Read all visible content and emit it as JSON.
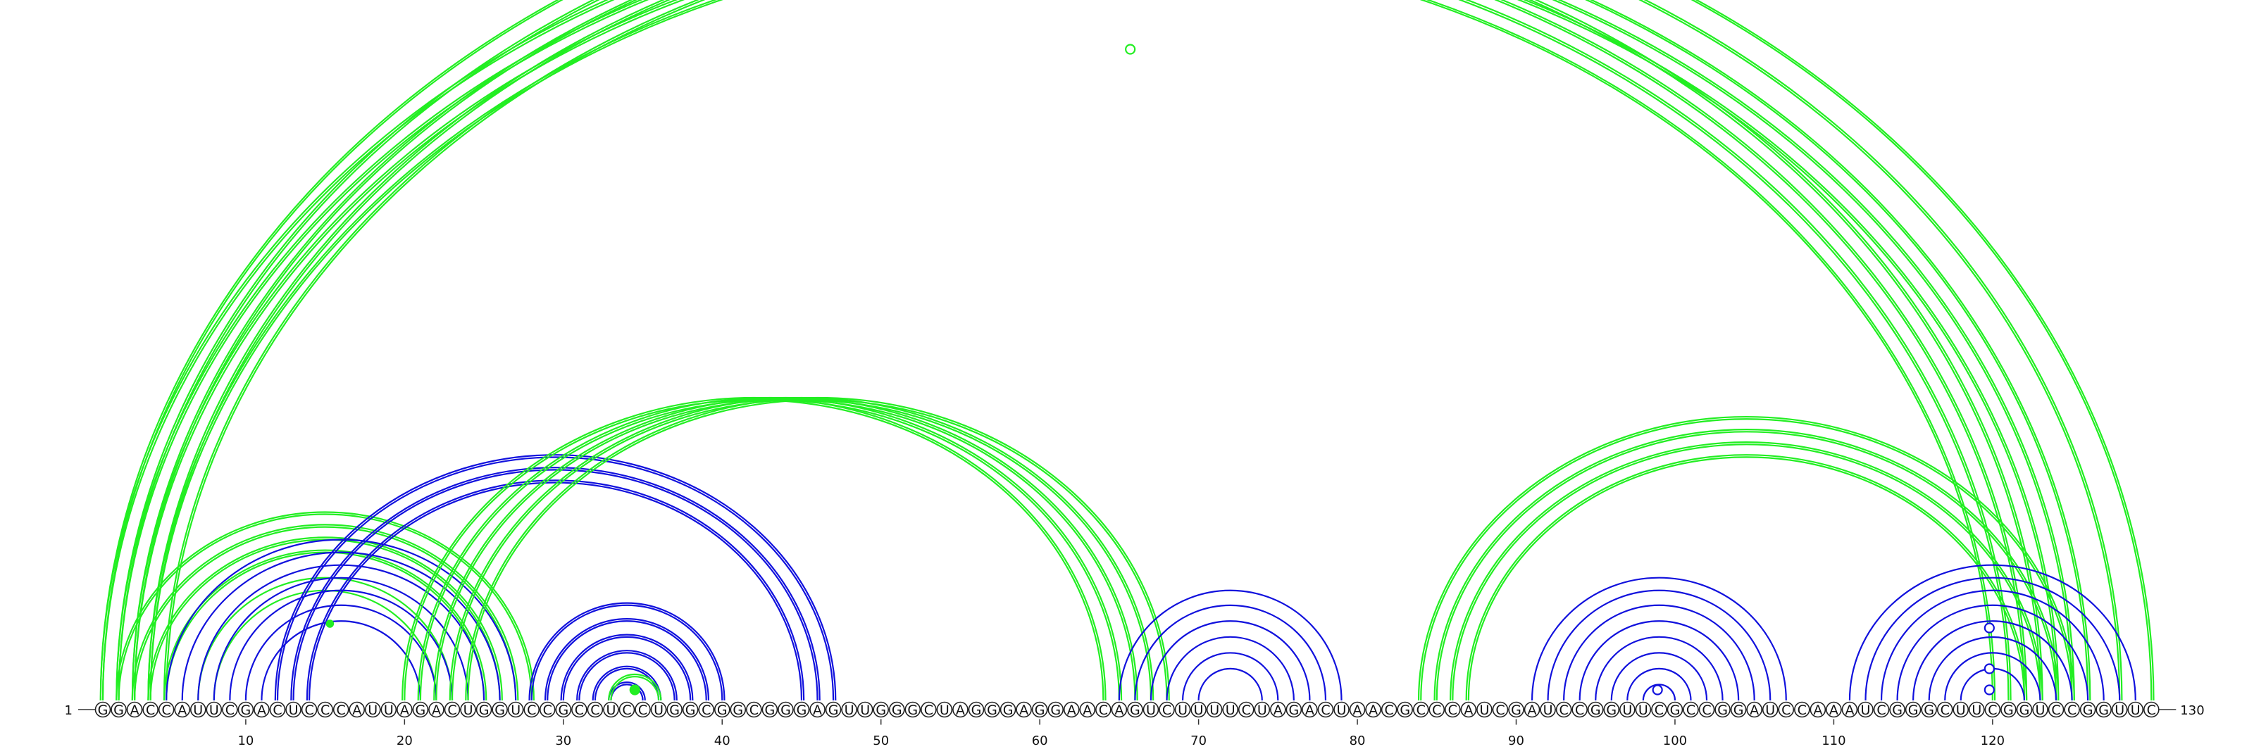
{
  "sequence": "GGACCAUUCGACUCCCAUUAGACUGGUCCGCCUCCUGGCGGCGGGAGUUGGGCUAGGGAGGAACAGUCUUUUCUAGACUAACGCCCAUCGAUCCGGUUCGCCGGAUCCAAAUCGGGCUUCGGUCCGGUUC",
  "start_label": "1",
  "end_label": "130",
  "ticks": [
    "10",
    "20",
    "30",
    "40",
    "50",
    "60",
    "70",
    "80",
    "90",
    "100",
    "110",
    "120"
  ],
  "tick_positions": [
    10,
    20,
    30,
    40,
    50,
    60,
    70,
    80,
    90,
    100,
    110,
    120
  ],
  "colors": {
    "green": "#22ee22",
    "blue": "#1111dd"
  },
  "arc_groups": [
    {
      "color": "green",
      "pairs": [
        [
          1,
          130
        ],
        [
          2,
          128
        ],
        [
          3,
          126
        ],
        [
          4,
          125
        ],
        [
          5,
          124
        ]
      ],
      "strands": 2
    },
    {
      "color": "green",
      "pairs": [
        [
          1,
          123
        ],
        [
          2,
          122
        ],
        [
          3,
          121
        ],
        [
          4,
          120
        ]
      ],
      "strands": 2
    },
    {
      "color": "green",
      "pairs": [
        [
          2,
          28
        ],
        [
          3,
          27
        ],
        [
          4,
          26
        ],
        [
          5,
          25
        ]
      ],
      "strands": 2
    },
    {
      "color": "green",
      "pairs": [
        [
          7,
          23
        ],
        [
          8,
          22
        ]
      ],
      "strands": 1
    },
    {
      "color": "blue",
      "pairs": [
        [
          5,
          27
        ],
        [
          6,
          26
        ],
        [
          7,
          25
        ],
        [
          8,
          24
        ],
        [
          9,
          23
        ],
        [
          10,
          22
        ],
        [
          11,
          21
        ]
      ],
      "strands": 1
    },
    {
      "color": "blue",
      "pairs": [
        [
          12,
          47
        ],
        [
          13,
          46
        ],
        [
          14,
          45
        ]
      ],
      "strands": 2
    },
    {
      "color": "green",
      "pairs": [
        [
          20,
          64
        ],
        [
          21,
          65
        ],
        [
          22,
          66
        ],
        [
          23,
          67
        ],
        [
          24,
          68
        ]
      ],
      "strands": 2
    },
    {
      "color": "blue",
      "pairs": [
        [
          28,
          40
        ],
        [
          29,
          39
        ],
        [
          30,
          38
        ],
        [
          31,
          37
        ],
        [
          32,
          36
        ],
        [
          33,
          35
        ]
      ],
      "strands": 2
    },
    {
      "color": "green",
      "pairs": [
        [
          33,
          36
        ]
      ],
      "strands": 2
    },
    {
      "color": "blue",
      "pairs": [
        [
          65,
          79
        ],
        [
          66,
          78
        ],
        [
          67,
          77
        ],
        [
          68,
          76
        ],
        [
          69,
          75
        ],
        [
          70,
          74
        ]
      ],
      "strands": 1
    },
    {
      "color": "green",
      "pairs": [
        [
          84,
          125
        ],
        [
          85,
          124
        ],
        [
          86,
          123
        ],
        [
          87,
          122
        ]
      ],
      "strands": 2
    },
    {
      "color": "blue",
      "pairs": [
        [
          91,
          107
        ],
        [
          92,
          106
        ],
        [
          93,
          105
        ],
        [
          94,
          104
        ],
        [
          95,
          103
        ],
        [
          96,
          102
        ],
        [
          97,
          101
        ],
        [
          98,
          100
        ]
      ],
      "strands": 1
    },
    {
      "color": "blue",
      "pairs": [
        [
          111,
          129
        ],
        [
          112,
          128
        ],
        [
          113,
          127
        ],
        [
          114,
          126
        ],
        [
          115,
          125
        ],
        [
          116,
          124
        ],
        [
          117,
          123
        ],
        [
          118,
          122
        ]
      ],
      "strands": 1
    }
  ],
  "markers": [
    {
      "pos": 65.7,
      "y_frac": 0.0,
      "fill": "open",
      "color": "green"
    },
    {
      "pos": 34.5,
      "arc_h": 0.0,
      "fill": "solid",
      "color": "green"
    },
    {
      "pos": 98.9,
      "arc_h": 0.0,
      "fill": "open",
      "color": "blue"
    },
    {
      "pos": 119.8,
      "arc_h": 0.0,
      "fill": "open",
      "color": "blue"
    }
  ]
}
